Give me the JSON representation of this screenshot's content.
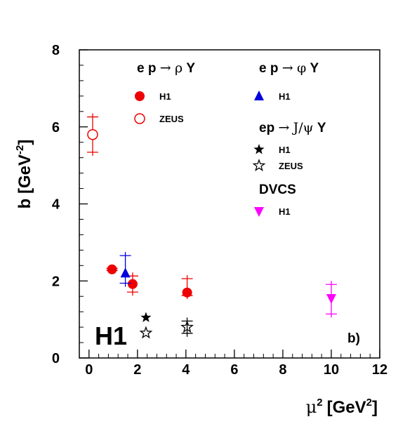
{
  "chart_data": {
    "type": "scatter",
    "xlabel_main": "μ",
    "xlabel_sup": "2",
    "xlabel_unit": "[GeV",
    "xlabel_unit_sup": "2",
    "xlabel_close": "]",
    "ylabel_main": "b [GeV",
    "ylabel_sup": "-2",
    "ylabel_close": "]",
    "xlim": [
      -0.4,
      12
    ],
    "ylim": [
      0,
      8
    ],
    "x_ticks": [
      0,
      2,
      4,
      6,
      8,
      10,
      12
    ],
    "x_tick_labels": [
      "0",
      "2",
      "4",
      "6",
      "8",
      "10",
      "12"
    ],
    "y_ticks": [
      0,
      2,
      4,
      6,
      8
    ],
    "y_tick_labels": [
      "0",
      "2",
      "4",
      "6",
      "8"
    ],
    "experiment_label": "H1",
    "panel_label": "b)",
    "legend_groups": [
      {
        "pre": "e p ",
        "arrow": "→",
        "particle": "ρ",
        "post": " Y"
      },
      {
        "pre": "e p ",
        "arrow": "→",
        "particle": "φ",
        "post": " Y"
      },
      {
        "pre": "ep ",
        "arrow": "→",
        "particle": "J/ψ",
        "post": " Y"
      },
      {
        "pre": "DVCS",
        "arrow": "",
        "particle": "",
        "post": ""
      }
    ],
    "series": [
      {
        "name": "H1",
        "group": 0,
        "marker": "circle-filled",
        "color": "#ee0000",
        "points": [
          {
            "x": 0.95,
            "y": 2.3,
            "elo": 0.12,
            "ehi": 0.12
          },
          {
            "x": 1.8,
            "y": 1.92,
            "elo": 0.3,
            "ehi": 0.3
          },
          {
            "x": 4.05,
            "y": 1.7,
            "elo": 0.17,
            "ehi": 0.45
          }
        ]
      },
      {
        "name": "ZEUS",
        "group": 0,
        "marker": "circle-open",
        "color": "#ee0000",
        "points": [
          {
            "x": 0.15,
            "y": 5.8,
            "elo": 0.55,
            "ehi": 0.55
          }
        ]
      },
      {
        "name": "H1",
        "group": 1,
        "marker": "triangle-up",
        "color": "#0000dd",
        "points": [
          {
            "x": 1.5,
            "y": 2.2,
            "elo": 0.35,
            "ehi": 0.55
          }
        ]
      },
      {
        "name": "H1",
        "group": 2,
        "marker": "star-filled",
        "color": "#000000",
        "points": [
          {
            "x": 2.35,
            "y": 1.05,
            "elo": 0,
            "ehi": 0
          }
        ]
      },
      {
        "name": "ZEUS",
        "group": 2,
        "marker": "star-open",
        "color": "#000000",
        "points": [
          {
            "x": 2.35,
            "y": 0.65,
            "elo": 0,
            "ehi": 0
          },
          {
            "x": 4.05,
            "y": 0.8,
            "elo": 0.25,
            "ehi": 0.25
          }
        ]
      },
      {
        "name": "H1",
        "group": 3,
        "marker": "triangle-down",
        "color": "#ff00ff",
        "points": [
          {
            "x": 10.0,
            "y": 1.55,
            "elo": 0.5,
            "ehi": 0.45
          }
        ]
      }
    ]
  }
}
